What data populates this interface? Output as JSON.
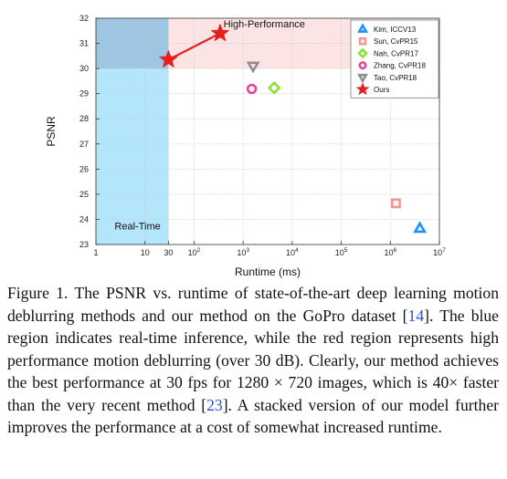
{
  "chart_data": {
    "type": "scatter",
    "xlabel": "Runtime (ms)",
    "ylabel": "PSNR",
    "xscale": "log",
    "xlim": [
      1,
      10000000
    ],
    "ylim": [
      23,
      32
    ],
    "xticks": [
      {
        "value": 1,
        "label": "1"
      },
      {
        "value": 10,
        "label": "10"
      },
      {
        "value": 30,
        "label": "30"
      },
      {
        "value": 100,
        "label": "10",
        "sup": "2"
      },
      {
        "value": 1000,
        "label": "10",
        "sup": "3"
      },
      {
        "value": 10000,
        "label": "10",
        "sup": "4"
      },
      {
        "value": 100000,
        "label": "10",
        "sup": "5"
      },
      {
        "value": 1000000,
        "label": "10",
        "sup": "6"
      },
      {
        "value": 10000000,
        "label": "10",
        "sup": "7"
      }
    ],
    "yticks": [
      23,
      24,
      25,
      26,
      27,
      28,
      29,
      30,
      31,
      32
    ],
    "grid": true,
    "legend_position": "top-right",
    "regions": [
      {
        "name": "Real-Time",
        "x_range": [
          1,
          30
        ],
        "y_range": [
          23,
          32
        ],
        "color": "#b3e5fb"
      },
      {
        "name": "High-Performance",
        "x_range": [
          30,
          10000000
        ],
        "y_range": [
          30,
          32
        ],
        "color": "#fde4e4"
      }
    ],
    "overlap_color": "#9ec5e2",
    "series": [
      {
        "name": "Kim, ICCV13",
        "marker": "triangle",
        "color": "#1e90ff",
        "points": [
          {
            "x": 4000000,
            "y": 23.64
          }
        ]
      },
      {
        "name": "Sun, CvPR15",
        "marker": "square",
        "color": "#f4978e",
        "points": [
          {
            "x": 1300000,
            "y": 24.64
          }
        ]
      },
      {
        "name": "Nah, CvPR17",
        "marker": "diamond",
        "color": "#8ee03a",
        "points": [
          {
            "x": 4300,
            "y": 29.23
          }
        ]
      },
      {
        "name": "Zhang, CvPR18",
        "marker": "circle",
        "color": "#e8449a",
        "points": [
          {
            "x": 1500,
            "y": 29.19
          }
        ]
      },
      {
        "name": "Tao, CvPR18",
        "marker": "triangle-down",
        "color": "#8f8f8f",
        "points": [
          {
            "x": 1600,
            "y": 30.1
          }
        ]
      },
      {
        "name": "Ours",
        "marker": "star",
        "color": "#e62020",
        "points": [
          {
            "x": 30,
            "y": 30.35
          },
          {
            "x": 340,
            "y": 31.4
          }
        ],
        "connected": true
      }
    ]
  },
  "caption": {
    "lines": [
      [
        {
          "t": "Figure 1. The PSNR vs.  runtime of state-of-the-art deep learning"
        }
      ],
      [
        {
          "t": "motion deblurring methods and our method on the GoPro dataset"
        }
      ],
      [
        {
          "t": "["
        },
        {
          "t": "14",
          "ref": true
        },
        {
          "t": "]. The blue region indicates real-time inference, while the red"
        }
      ],
      [
        {
          "t": "region represents high performance motion deblurring (over 30"
        }
      ],
      [
        {
          "t": "dB). Clearly, our method achieves the best performance at 30 fps"
        }
      ],
      [
        {
          "t": "for 1280 × 720 images, which is 40× faster than the very recent"
        }
      ],
      [
        {
          "t": "method ["
        },
        {
          "t": "23",
          "ref": true
        },
        {
          "t": "]. A stacked version of our model further improves the"
        }
      ],
      [
        {
          "t": "performance at a cost of somewhat increased runtime."
        }
      ]
    ]
  }
}
